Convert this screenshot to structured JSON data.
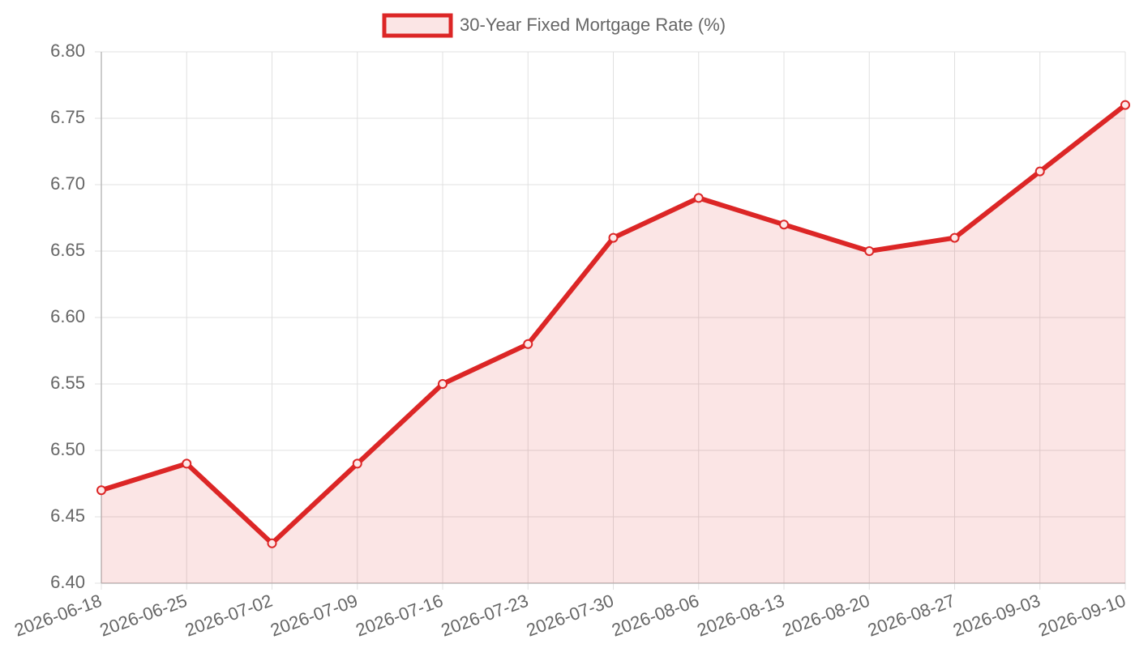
{
  "chart_data": {
    "type": "line",
    "categories": [
      "2026-06-18",
      "2026-06-25",
      "2026-07-02",
      "2026-07-09",
      "2026-07-16",
      "2026-07-23",
      "2026-07-30",
      "2026-08-06",
      "2026-08-13",
      "2026-08-20",
      "2026-08-27",
      "2026-09-03",
      "2026-09-10"
    ],
    "series": [
      {
        "name": "30-Year Fixed Mortgage Rate (%)",
        "color": "#dc2626",
        "values": [
          6.47,
          6.49,
          6.43,
          6.49,
          6.55,
          6.58,
          6.66,
          6.69,
          6.67,
          6.65,
          6.66,
          6.71,
          6.76
        ]
      }
    ],
    "ylim": [
      6.4,
      6.8
    ],
    "yticks": [
      {
        "value": 6.4,
        "label": "6.40"
      },
      6.45,
      {
        "value": 6.5,
        "label": "6.50"
      },
      6.55,
      {
        "value": 6.6,
        "label": "6.60"
      },
      6.65,
      {
        "value": 6.7,
        "label": "6.70"
      },
      6.75,
      {
        "value": 6.8,
        "label": "6.80"
      }
    ],
    "grid": true,
    "fill": true,
    "legend": "top"
  }
}
